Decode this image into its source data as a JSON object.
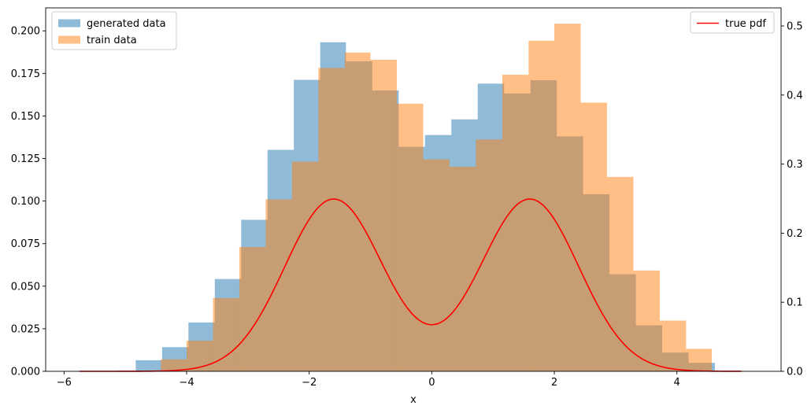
{
  "chart_data": {
    "type": "bar",
    "xlabel": "x",
    "xlim": [
      -6.3,
      5.7
    ],
    "x_ticks": [
      -6,
      -4,
      -2,
      0,
      2,
      4
    ],
    "y_left": {
      "lim": [
        0,
        0.2135
      ],
      "ticks": [
        0.0,
        0.025,
        0.05,
        0.075,
        0.1,
        0.125,
        0.15,
        0.175,
        0.2
      ],
      "tick_labels": [
        "0.000",
        "0.025",
        "0.050",
        "0.075",
        "0.100",
        "0.125",
        "0.150",
        "0.175",
        "0.200"
      ]
    },
    "y_right": {
      "lim": [
        0,
        0.5262
      ],
      "ticks": [
        0.0,
        0.1,
        0.2,
        0.3,
        0.4,
        0.5
      ],
      "tick_labels": [
        "0.0",
        "0.1",
        "0.2",
        "0.3",
        "0.4",
        "0.5"
      ]
    },
    "series": [
      {
        "name": "generated data",
        "color": "#1f77b4",
        "alpha": 0.5,
        "axis": "left",
        "bin_edges": [
          -4.83,
          -4.4,
          -3.97,
          -3.54,
          -3.11,
          -2.68,
          -2.25,
          -1.82,
          -1.4,
          -0.97,
          -0.54,
          -0.11,
          0.32,
          0.75,
          1.18,
          1.61,
          2.04,
          2.47,
          2.9,
          3.33,
          3.76,
          4.19,
          4.62
        ],
        "values": [
          0.0065,
          0.0142,
          0.0287,
          0.0542,
          0.089,
          0.1301,
          0.1712,
          0.1933,
          0.1821,
          0.165,
          0.1319,
          0.1388,
          0.148,
          0.169,
          0.1632,
          0.171,
          0.138,
          0.104,
          0.057,
          0.027,
          0.011,
          0.005
        ]
      },
      {
        "name": "train data",
        "color": "#ff7f0e",
        "alpha": 0.5,
        "axis": "left",
        "bin_edges": [
          -4.42,
          -4.0,
          -3.57,
          -3.14,
          -2.71,
          -2.28,
          -1.85,
          -1.42,
          -1.0,
          -0.57,
          -0.14,
          0.29,
          0.72,
          1.15,
          1.58,
          2.0,
          2.43,
          2.86,
          3.29,
          3.72,
          4.15,
          4.57
        ],
        "values": [
          0.007,
          0.018,
          0.043,
          0.073,
          0.101,
          0.1232,
          0.1782,
          0.1872,
          0.183,
          0.1572,
          0.1245,
          0.1202,
          0.1362,
          0.1742,
          0.1942,
          0.2042,
          0.1578,
          0.1142,
          0.0592,
          0.0298,
          0.0132
        ]
      },
      {
        "name": "true pdf",
        "color": "#ff0000",
        "type": "line",
        "axis": "right",
        "x_range": [
          -5.75,
          5.05
        ],
        "curve": "0.5*N(-1.6,0.8) + 0.5*N(1.6,0.8)"
      }
    ],
    "legends": [
      {
        "position": "upper-left",
        "entries": [
          "generated data",
          "train data"
        ]
      },
      {
        "position": "upper-right",
        "entries": [
          "true pdf"
        ]
      }
    ],
    "grid": false
  }
}
